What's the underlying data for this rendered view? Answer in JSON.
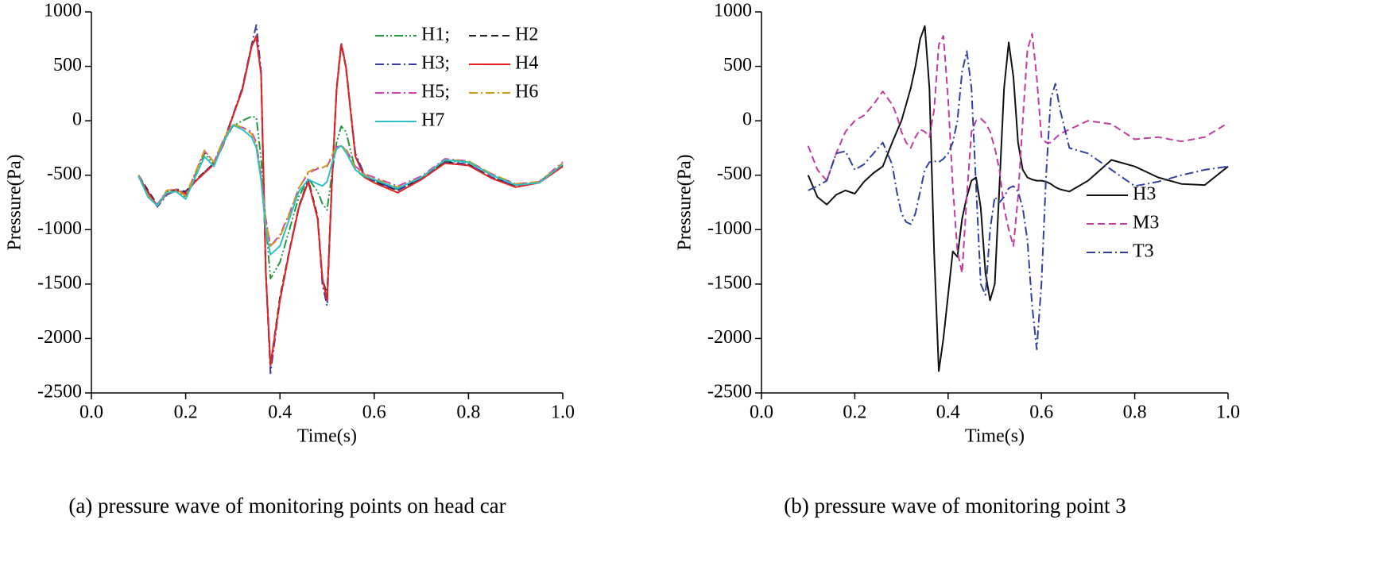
{
  "chart_data": [
    {
      "type": "line",
      "caption": "(a) pressure wave of monitoring points on head car",
      "x_label": "Time(s)",
      "y_label": "Pressure(Pa)",
      "xlim": [
        0,
        1
      ],
      "xticks": [
        {
          "value": 0,
          "label": "0.0"
        },
        0.2,
        0.4,
        0.6,
        0.8,
        {
          "value": 1,
          "label": "1.0"
        }
      ],
      "ylim": [
        -2500,
        1000
      ],
      "yticks": [
        -2500,
        -2000,
        -1500,
        -1000,
        -500,
        0,
        500,
        1000
      ],
      "legend": "upper right",
      "legend_columns": 2,
      "x": [
        0.1,
        0.12,
        0.14,
        0.16,
        0.18,
        0.2,
        0.22,
        0.24,
        0.26,
        0.28,
        0.3,
        0.32,
        0.34,
        0.35,
        0.36,
        0.37,
        0.38,
        0.4,
        0.42,
        0.44,
        0.46,
        0.48,
        0.49,
        0.5,
        0.51,
        0.52,
        0.53,
        0.54,
        0.56,
        0.58,
        0.6,
        0.65,
        0.7,
        0.75,
        0.8,
        0.85,
        0.9,
        0.95,
        1.0
      ],
      "series": [
        {
          "name": "H1;",
          "color": "#1e9a3c",
          "dash": "dashdotdot",
          "values": [
            -500,
            -700,
            -780,
            -650,
            -640,
            -700,
            -500,
            -300,
            -400,
            -200,
            -50,
            0,
            40,
            30,
            -350,
            -950,
            -1450,
            -1300,
            -1000,
            -700,
            -530,
            -650,
            -760,
            -820,
            -500,
            -200,
            -50,
            -100,
            -450,
            -520,
            -550,
            -630,
            -520,
            -370,
            -380,
            -500,
            -590,
            -570,
            -400
          ]
        },
        {
          "name": "H2",
          "color": "#222222",
          "dash": "dashed",
          "values": [
            -500,
            -640,
            -770,
            -660,
            -630,
            -650,
            -550,
            -470,
            -390,
            -210,
            40,
            290,
            690,
            760,
            430,
            -1380,
            -2250,
            -1620,
            -1190,
            -790,
            -540,
            -880,
            -1450,
            -1600,
            -600,
            280,
            700,
            490,
            -320,
            -510,
            -560,
            -640,
            -530,
            -380,
            -400,
            -520,
            -600,
            -560,
            -410
          ]
        },
        {
          "name": "H3;",
          "color": "#3a3aa8",
          "dash": "dashdot",
          "values": [
            -500,
            -650,
            -790,
            -680,
            -640,
            -660,
            -560,
            -470,
            -400,
            -200,
            50,
            300,
            700,
            880,
            450,
            -1400,
            -2320,
            -1650,
            -1200,
            -800,
            -550,
            -900,
            -1500,
            -1700,
            -600,
            300,
            720,
            500,
            -300,
            -500,
            -550,
            -640,
            -530,
            -380,
            -400,
            -520,
            -600,
            -560,
            -410
          ]
        },
        {
          "name": "H4",
          "color": "#e02424",
          "dash": "solid",
          "values": [
            -510,
            -660,
            -780,
            -670,
            -640,
            -670,
            -560,
            -480,
            -400,
            -220,
            40,
            280,
            680,
            780,
            420,
            -1400,
            -2250,
            -1650,
            -1200,
            -800,
            -560,
            -900,
            -1450,
            -1650,
            -600,
            280,
            700,
            500,
            -330,
            -520,
            -570,
            -660,
            -540,
            -390,
            -410,
            -530,
            -610,
            -570,
            -420
          ]
        },
        {
          "name": "H5;",
          "color": "#d040b0",
          "dash": "dashdot",
          "values": [
            -500,
            -690,
            -770,
            -640,
            -630,
            -690,
            -480,
            -280,
            -380,
            -180,
            -40,
            -60,
            -100,
            -200,
            -500,
            -900,
            -1150,
            -1050,
            -850,
            -620,
            -480,
            -440,
            -430,
            -420,
            -330,
            -240,
            -230,
            -260,
            -420,
            -490,
            -520,
            -600,
            -510,
            -350,
            -370,
            -490,
            -580,
            -560,
            -380
          ]
        },
        {
          "name": "H6",
          "color": "#d09a18",
          "dash": "dashdot",
          "values": [
            -500,
            -690,
            -780,
            -640,
            -630,
            -690,
            -480,
            -270,
            -380,
            -170,
            -30,
            -60,
            -120,
            -220,
            -520,
            -920,
            -1150,
            -1070,
            -860,
            -620,
            -470,
            -430,
            -430,
            -410,
            -320,
            -240,
            -230,
            -270,
            -430,
            -500,
            -530,
            -610,
            -520,
            -360,
            -370,
            -490,
            -580,
            -560,
            -390
          ]
        },
        {
          "name": "H7",
          "color": "#30c0c4",
          "dash": "solid",
          "values": [
            -510,
            -700,
            -780,
            -660,
            -650,
            -720,
            -520,
            -330,
            -420,
            -200,
            -40,
            -80,
            -150,
            -250,
            -550,
            -1000,
            -1230,
            -1150,
            -900,
            -650,
            -540,
            -580,
            -600,
            -560,
            -400,
            -260,
            -230,
            -290,
            -450,
            -510,
            -540,
            -620,
            -520,
            -360,
            -380,
            -500,
            -590,
            -570,
            -400
          ]
        }
      ]
    },
    {
      "type": "line",
      "caption": "(b) pressure wave of monitoring point 3",
      "x_label": "Time(s)",
      "y_label": "Pressure(Pa)",
      "xlim": [
        0,
        1
      ],
      "xticks": [
        {
          "value": 0,
          "label": "0.0"
        },
        0.2,
        0.4,
        0.6,
        0.8,
        {
          "value": 1,
          "label": "1.0"
        }
      ],
      "ylim": [
        -2500,
        1000
      ],
      "yticks": [
        -2500,
        -2000,
        -1500,
        -1000,
        -500,
        0,
        500,
        1000
      ],
      "legend": "center right",
      "legend_columns": 1,
      "x": [
        0.1,
        0.12,
        0.14,
        0.16,
        0.18,
        0.2,
        0.22,
        0.24,
        0.26,
        0.28,
        0.29,
        0.3,
        0.31,
        0.32,
        0.33,
        0.34,
        0.35,
        0.36,
        0.37,
        0.38,
        0.39,
        0.4,
        0.41,
        0.42,
        0.43,
        0.44,
        0.45,
        0.46,
        0.47,
        0.48,
        0.49,
        0.5,
        0.51,
        0.52,
        0.53,
        0.54,
        0.55,
        0.56,
        0.57,
        0.58,
        0.59,
        0.6,
        0.61,
        0.62,
        0.63,
        0.64,
        0.66,
        0.7,
        0.75,
        0.8,
        0.85,
        0.9,
        0.95,
        1.0
      ],
      "series": [
        {
          "name": "H3",
          "color": "#111111",
          "dash": "solid",
          "values": [
            -500,
            -700,
            -770,
            -680,
            -640,
            -670,
            -560,
            -480,
            -420,
            -200,
            -100,
            0,
            150,
            300,
            500,
            750,
            870,
            300,
            -1200,
            -2300,
            -2000,
            -1600,
            -1200,
            -1250,
            -900,
            -700,
            -550,
            -520,
            -800,
            -1400,
            -1650,
            -1500,
            -600,
            300,
            720,
            400,
            -200,
            -450,
            -520,
            -540,
            -550,
            -550,
            -560,
            -580,
            -610,
            -630,
            -650,
            -550,
            -360,
            -420,
            -520,
            -580,
            -590,
            -420
          ]
        },
        {
          "name": "M3",
          "color": "#c03ca0",
          "dash": "dashed",
          "values": [
            -230,
            -450,
            -550,
            -300,
            -100,
            0,
            50,
            150,
            270,
            150,
            50,
            -100,
            -200,
            -250,
            -150,
            -80,
            -100,
            -150,
            100,
            700,
            780,
            200,
            -600,
            -1200,
            -1400,
            -700,
            -100,
            0,
            20,
            -20,
            -100,
            -250,
            -450,
            -800,
            -1000,
            -1150,
            -700,
            0,
            650,
            800,
            400,
            -150,
            -200,
            -200,
            -160,
            -120,
            -80,
            0,
            -30,
            -170,
            -150,
            -190,
            -150,
            -20
          ]
        },
        {
          "name": "T3",
          "color": "#3040a0",
          "dash": "dashdot",
          "values": [
            -640,
            -600,
            -550,
            -300,
            -280,
            -450,
            -400,
            -300,
            -200,
            -400,
            -650,
            -850,
            -930,
            -950,
            -850,
            -650,
            -450,
            -380,
            -370,
            -380,
            -350,
            -300,
            -200,
            0,
            450,
            640,
            300,
            -600,
            -1500,
            -1600,
            -1000,
            -700,
            -750,
            -700,
            -620,
            -600,
            -650,
            -800,
            -1100,
            -1700,
            -2100,
            -1500,
            -500,
            200,
            340,
            100,
            -250,
            -300,
            -450,
            -600,
            -560,
            -500,
            -450,
            -420
          ]
        }
      ]
    }
  ]
}
